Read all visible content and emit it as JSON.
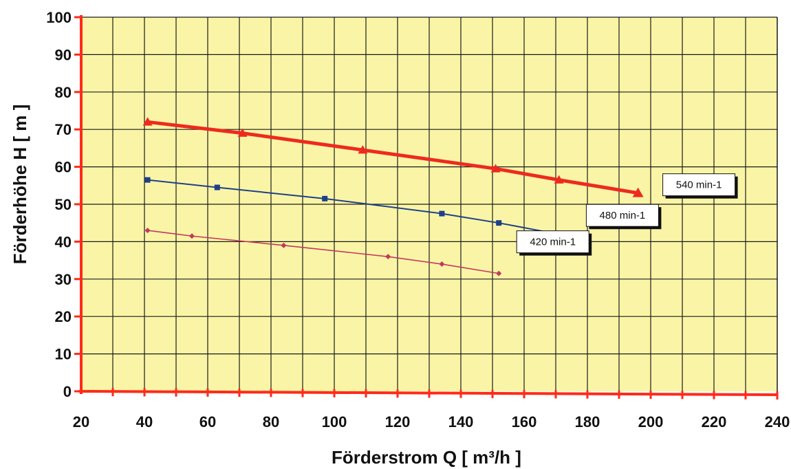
{
  "chart_data": {
    "type": "line",
    "title": "",
    "xlabel": "Förderstrom Q [ m³/h ]",
    "ylabel": "Förderhöhe  H [ m ]",
    "xlim": [
      20,
      240
    ],
    "ylim": [
      0,
      100
    ],
    "x_ticks": [
      "20",
      "40",
      "60",
      "80",
      "100",
      "120",
      "140",
      "160",
      "180",
      "200",
      "220",
      "240"
    ],
    "y_ticks": [
      "0",
      "10",
      "20",
      "30",
      "40",
      "50",
      "60",
      "70",
      "80",
      "90",
      "100"
    ],
    "grid": true,
    "colors": {
      "plot_background": "#faf5a6",
      "grid": "#1a1a1a",
      "axes": "#ff2a1a"
    },
    "series": [
      {
        "name": "540 min-1",
        "color": "#ee2a1f",
        "marker": "triangle",
        "x": [
          41,
          71,
          109,
          151,
          171,
          196
        ],
        "y": [
          72,
          69,
          64.5,
          59.5,
          56.5,
          53
        ]
      },
      {
        "name": "480 min-1",
        "color": "#1f3f8a",
        "marker": "square",
        "x": [
          41,
          63,
          97,
          134,
          152,
          174
        ],
        "y": [
          56.5,
          54.5,
          51.5,
          47.5,
          45,
          41.5
        ]
      },
      {
        "name": "420 min-1",
        "color": "#c4385e",
        "marker": "diamond",
        "x": [
          41,
          55,
          84,
          117,
          134,
          152
        ],
        "y": [
          43,
          41.5,
          39,
          36,
          34,
          31.5
        ]
      }
    ]
  }
}
